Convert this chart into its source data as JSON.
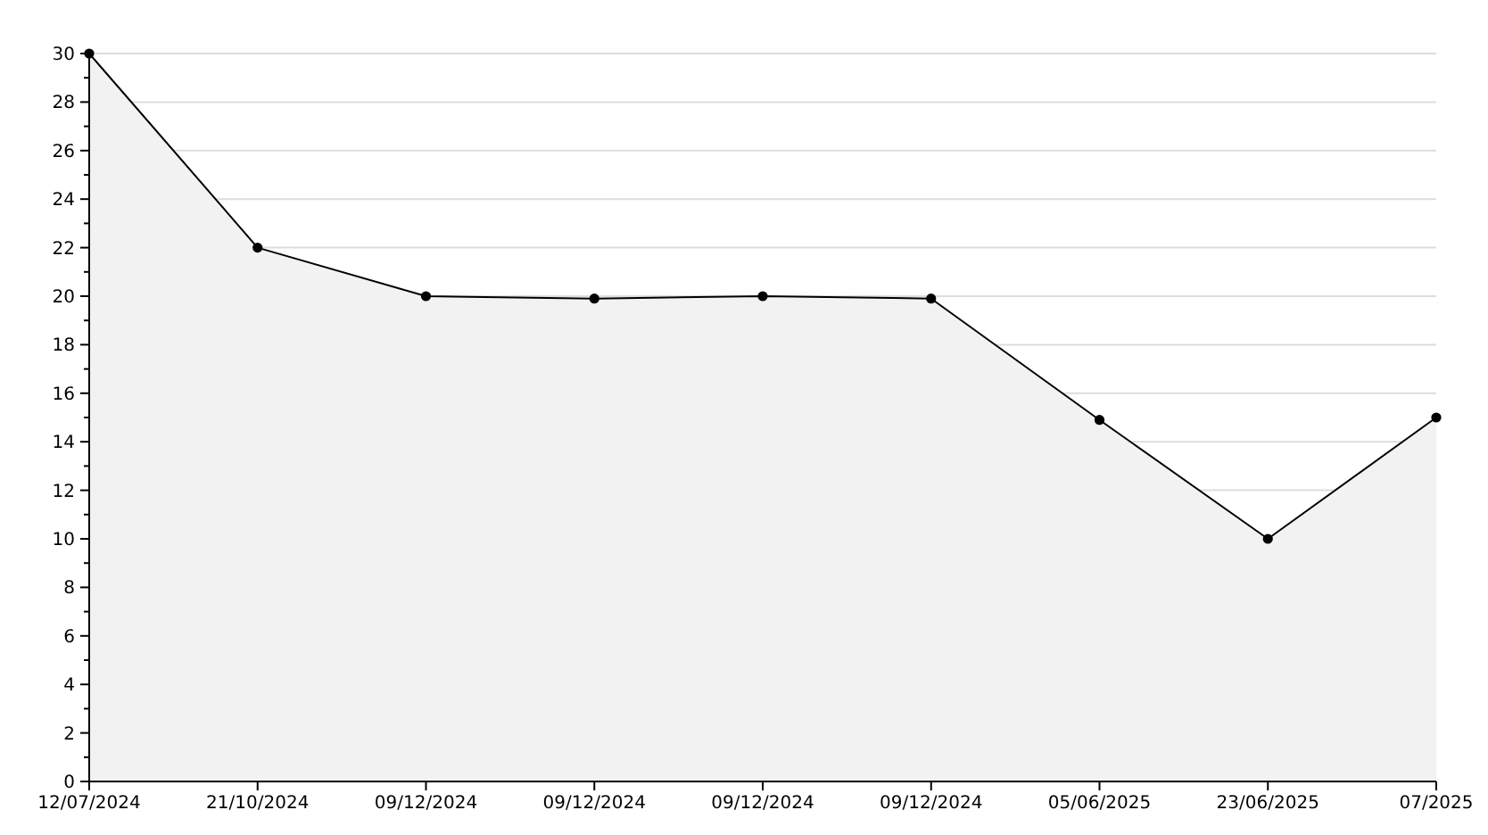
{
  "chart_data": {
    "type": "area",
    "categories": [
      "12/07/2024",
      "21/10/2024",
      "09/12/2024",
      "09/12/2024",
      "09/12/2024",
      "09/12/2024",
      "05/06/2025",
      "23/06/2025",
      "07/2025"
    ],
    "series": [
      {
        "color": "#000000",
        "values": [
          30,
          22,
          20,
          19.9,
          20,
          19.9,
          14.9,
          10,
          15
        ]
      }
    ],
    "ylim": [
      0,
      30
    ],
    "yticks": [
      0,
      {
        "value": 1,
        "label": null
      },
      2,
      {
        "value": 3,
        "label": null
      },
      4,
      {
        "value": 5,
        "label": null
      },
      6,
      {
        "value": 7,
        "label": null
      },
      8,
      {
        "value": 9,
        "label": null
      },
      10,
      {
        "value": 11,
        "label": null
      },
      12,
      {
        "value": 13,
        "label": null
      },
      14,
      {
        "value": 15,
        "label": null
      },
      16,
      {
        "value": 17,
        "label": null
      },
      18,
      {
        "value": 19,
        "label": null
      },
      20,
      {
        "value": 21,
        "label": null
      },
      22,
      {
        "value": 23,
        "label": null
      },
      24,
      {
        "value": 25,
        "label": null
      },
      26,
      {
        "value": 27,
        "label": null
      },
      28,
      {
        "value": 29,
        "label": null
      },
      30
    ],
    "grid": "y",
    "marker": "circle",
    "line_style": "solid"
  }
}
